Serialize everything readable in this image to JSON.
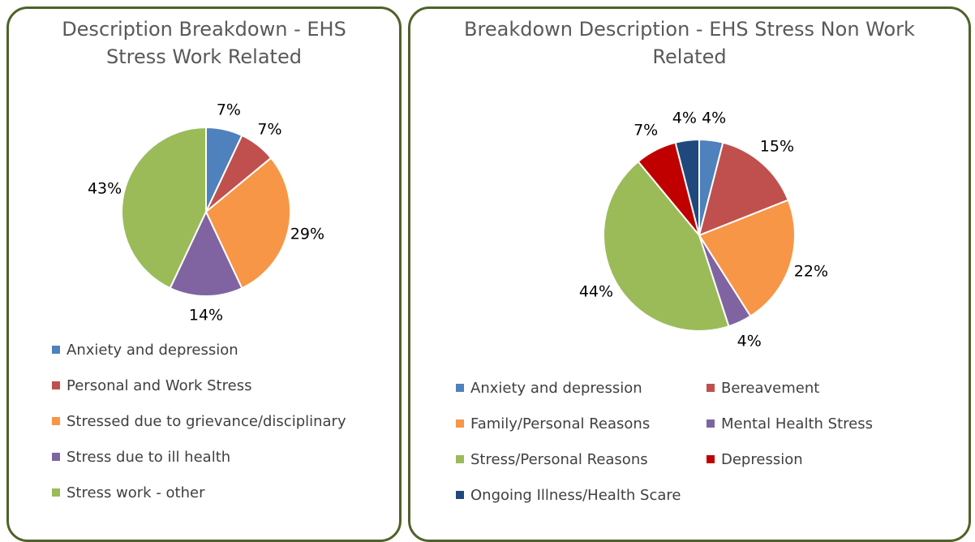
{
  "chart_data": [
    {
      "type": "pie",
      "title": "Description Breakdown - EHS Stress Work Related",
      "categories": [
        "Anxiety and depression",
        "Personal and Work Stress",
        "Stressed due to grievance/disciplinary",
        "Stress due to ill health",
        "Stress work - other"
      ],
      "values": [
        7,
        7,
        29,
        14,
        43
      ],
      "value_labels": [
        "7%",
        "7%",
        "29%",
        "14%",
        "43%"
      ],
      "colors": [
        "#4f81bd",
        "#c0504d",
        "#f79646",
        "#8064a2",
        "#9bbb59"
      ]
    },
    {
      "type": "pie",
      "title": "Breakdown Description - EHS Stress Non Work Related",
      "categories": [
        "Anxiety and depression",
        "Bereavement",
        "Family/Personal Reasons",
        "Mental Health Stress",
        "Stress/Personal Reasons",
        "Depression",
        "Ongoing Illness/Health Scare"
      ],
      "values": [
        4,
        15,
        22,
        4,
        44,
        7,
        4
      ],
      "value_labels": [
        "4%",
        "15%",
        "22%",
        "4%",
        "44%",
        "7%",
        "4%"
      ],
      "colors": [
        "#4f81bd",
        "#c0504d",
        "#f79646",
        "#8064a2",
        "#9bbb59",
        "#c00000",
        "#1f497d"
      ]
    }
  ]
}
